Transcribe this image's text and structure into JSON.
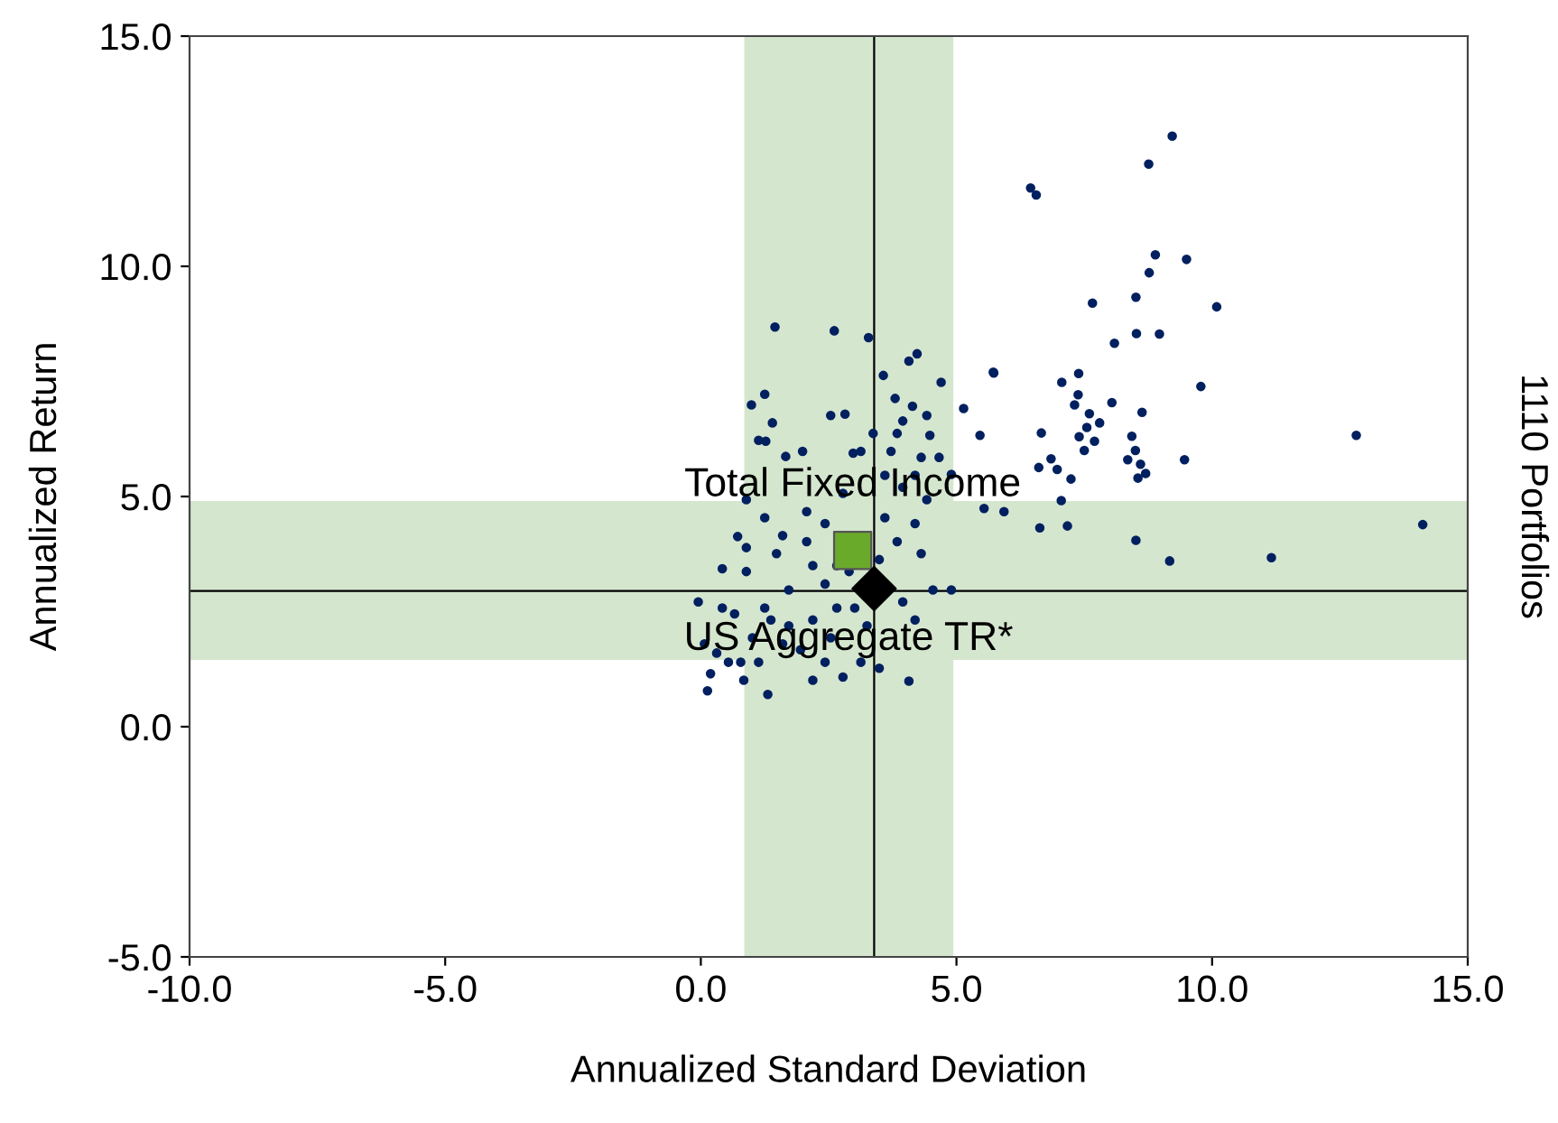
{
  "chart_data": {
    "type": "scatter",
    "xlabel": "Annualized Standard Deviation",
    "ylabel": "Annualized Return",
    "y2label": "1110 Portfolios",
    "xlim": [
      -10,
      15
    ],
    "ylim": [
      -5,
      15
    ],
    "xticks": [
      {
        "value": -10,
        "label": "-10.0"
      },
      {
        "value": -5,
        "label": "-5.0"
      },
      {
        "value": 0,
        "label": "0.0"
      },
      {
        "value": 5,
        "label": "5.0"
      },
      {
        "value": 10,
        "label": "10.0"
      },
      {
        "value": 15,
        "label": "15.0"
      }
    ],
    "yticks": [
      {
        "value": -5,
        "label": "-5.0"
      },
      {
        "value": 0,
        "label": "0.0"
      },
      {
        "value": 5,
        "label": "5.0"
      },
      {
        "value": 10,
        "label": "10.0"
      },
      {
        "value": 15,
        "label": "15.0"
      }
    ],
    "grid": false,
    "legend": false,
    "bands": [
      {
        "axis": "x",
        "from": 0.85,
        "to": 4.94,
        "color": "#d5e6cf"
      },
      {
        "axis": "y",
        "from": 1.45,
        "to": 4.9,
        "color": "#d5e6cf"
      }
    ],
    "ref_lines": [
      {
        "axis": "x",
        "value": 3.39,
        "color": "#000000"
      },
      {
        "axis": "y",
        "value": 2.95,
        "color": "#000000"
      }
    ],
    "series": [
      {
        "color": "#002060",
        "marker": "circle",
        "x": [
          9.22,
          8.76,
          6.45,
          6.56,
          8.89,
          9.5,
          8.77,
          7.66,
          8.51,
          10.09,
          8.09,
          8.52,
          8.97,
          5.73,
          7.39,
          7.06,
          9.78,
          7.38,
          7.31,
          8.04,
          8.63,
          7.55,
          7.4,
          7.7,
          7.5,
          7.8,
          7.6,
          5.14,
          5.46,
          6.66,
          12.82,
          8.43,
          8.5,
          8.6,
          8.7,
          8.35,
          8.55,
          9.46,
          6.85,
          6.61,
          6.97,
          7.24,
          7.05,
          5.54,
          5.93,
          6.63,
          7.17,
          14.12,
          8.51,
          9.17,
          11.16,
          1.45,
          2.61,
          3.28,
          4.23,
          4.07,
          5.72,
          4.7,
          1.25,
          0.99,
          3.8,
          2.54,
          2.82,
          4.14,
          4.48,
          1.4,
          1.13,
          1.99,
          1.66,
          2.98,
          3.84,
          4.31,
          4.66,
          4.9,
          3.95,
          4.42,
          0.89,
          1.25,
          2.07,
          1.6,
          0.72,
          2.43,
          3.6,
          4.19,
          3.84,
          4.31,
          4.54,
          4.9,
          3.95,
          4.19,
          3.49,
          4.07,
          3.13,
          2.19,
          1.31,
          0.13,
          0.19,
          0.54,
          0.07,
          -0.05,
          0.42,
          0.89,
          1.48,
          1.72,
          2.43,
          2.66,
          2.19,
          1.01,
          1.6,
          0.66,
          0.78,
          0.31,
          1.13,
          1.95,
          2.54,
          3.25,
          2.9,
          3.49,
          2.07,
          2.78,
          3.6,
          4.19,
          3.72,
          3.95,
          4.42,
          3.37,
          3.13,
          0.89,
          0.42,
          1.25,
          3.01,
          2.66,
          2.19,
          1.72,
          1.37,
          0.84,
          2.43,
          2.78,
          3.57,
          1.27
        ],
        "values": [
          12.83,
          12.22,
          11.7,
          11.55,
          10.25,
          10.15,
          9.86,
          9.2,
          9.33,
          9.12,
          8.33,
          8.54,
          8.53,
          7.68,
          7.67,
          7.48,
          7.39,
          7.21,
          6.99,
          7.04,
          6.83,
          6.5,
          6.3,
          6.2,
          6.0,
          6.6,
          6.8,
          6.91,
          6.33,
          6.38,
          6.33,
          6.31,
          6.0,
          5.7,
          5.5,
          5.8,
          5.4,
          5.8,
          5.82,
          5.63,
          5.59,
          5.38,
          4.91,
          4.74,
          4.67,
          4.32,
          4.36,
          4.39,
          4.05,
          3.6,
          3.67,
          8.68,
          8.6,
          8.45,
          8.1,
          7.94,
          7.7,
          7.48,
          7.22,
          6.99,
          7.13,
          6.76,
          6.79,
          6.96,
          6.33,
          6.6,
          6.22,
          5.98,
          5.87,
          5.94,
          6.37,
          5.85,
          5.85,
          5.48,
          5.2,
          4.93,
          4.93,
          4.54,
          4.67,
          4.15,
          4.13,
          4.41,
          4.54,
          4.41,
          4.02,
          3.76,
          2.97,
          2.97,
          2.71,
          2.32,
          1.27,
          0.99,
          1.4,
          1.01,
          0.7,
          0.78,
          1.15,
          1.4,
          1.8,
          2.71,
          3.43,
          3.37,
          3.76,
          2.97,
          3.1,
          2.58,
          2.32,
          1.93,
          1.8,
          2.45,
          1.4,
          1.6,
          1.4,
          1.67,
          1.93,
          2.19,
          3.37,
          3.63,
          4.02,
          5.07,
          5.46,
          5.46,
          5.98,
          6.64,
          6.76,
          6.37,
          5.98,
          3.89,
          2.58,
          2.58,
          2.58,
          3.5,
          3.5,
          2.19,
          2.32,
          1.01,
          1.4,
          1.08,
          7.63,
          6.2
        ]
      },
      {
        "name": "Total Fixed Income",
        "color": "#6aaa2a",
        "marker": "square",
        "x": [
          2.97
        ],
        "values": [
          3.83
        ]
      },
      {
        "name": "US Aggregate TR*",
        "color": "#000000",
        "marker": "diamond",
        "x": [
          3.39
        ],
        "values": [
          3.0
        ]
      }
    ]
  }
}
